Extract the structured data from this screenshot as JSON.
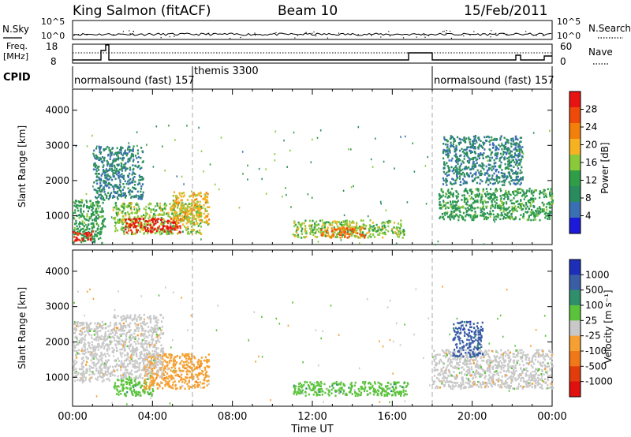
{
  "header": {
    "station": "King Salmon (fitACF)",
    "beam": "Beam 10",
    "date": "15/Feb/2011"
  },
  "noise_panel": {
    "left_label": "N.Sky",
    "right_label": "N.Search",
    "tick_top": "10^5",
    "tick_bottom": "10^0"
  },
  "freq_panel": {
    "left_label_1": "Freq.",
    "left_label_2": "[MHz]",
    "right_label": "Nave",
    "left_ticks": [
      "18",
      "8"
    ],
    "right_ticks": [
      "60",
      "0"
    ]
  },
  "cpid_panel": {
    "label": "CPID",
    "segments": [
      {
        "name": "normalsound (fast)",
        "id": "157",
        "start_h": 0,
        "end_h": 6
      },
      {
        "name": "themis",
        "id": "3300",
        "start_h": 6,
        "end_h": 18
      },
      {
        "name": "normalsound (fast)",
        "id": "157",
        "start_h": 18,
        "end_h": 24
      }
    ]
  },
  "power_colorbar": {
    "label": "Power [dB]",
    "ticks": [
      "28",
      "24",
      "20",
      "16",
      "12",
      "8",
      "4"
    ],
    "colors": [
      "#e81414",
      "#ee4a0a",
      "#f4800c",
      "#f5b322",
      "#8ac93a",
      "#2f9e47",
      "#2a8c5e",
      "#3a6fb4",
      "#1a1ad8"
    ]
  },
  "velocity_colorbar": {
    "label": "Velocity [m s⁻¹]",
    "ticks": [
      "1000",
      "500",
      "100",
      "25",
      "-25",
      "-100",
      "-500",
      "-1000"
    ],
    "colors": [
      "#1d2fb8",
      "#3a5ea6",
      "#2f8f6c",
      "#5ac33a",
      "#c8c8c8",
      "#f5a030",
      "#f07818",
      "#e03c0c",
      "#e01010"
    ]
  },
  "chart_data": {
    "type": "heatmap",
    "x_axis": {
      "label": "Time UT",
      "ticks": [
        "00:00",
        "04:00",
        "08:00",
        "12:00",
        "16:00",
        "20:00",
        "00:00"
      ],
      "range_h": [
        0,
        24
      ]
    },
    "y_axis": {
      "label": "Slant Range [km]",
      "ticks": [
        "1000",
        "2000",
        "3000",
        "4000"
      ],
      "range_km": [
        180,
        4600
      ]
    },
    "mode_boundaries_h": [
      6,
      18
    ],
    "power_regions": [
      {
        "t0": 0.0,
        "t1": 1.6,
        "r0": 250,
        "r1": 1500,
        "level_db": 10
      },
      {
        "t0": 0.0,
        "t1": 1.0,
        "r0": 300,
        "r1": 600,
        "level_db": 26
      },
      {
        "t0": 2.0,
        "t1": 6.4,
        "r0": 500,
        "r1": 1400,
        "level_db": 14
      },
      {
        "t0": 2.6,
        "t1": 5.4,
        "r0": 550,
        "r1": 950,
        "level_db": 28
      },
      {
        "t0": 5.0,
        "t1": 6.8,
        "r0": 800,
        "r1": 1700,
        "level_db": 18
      },
      {
        "t0": 1.0,
        "t1": 3.5,
        "r0": 1500,
        "r1": 3000,
        "level_db": 6
      },
      {
        "t0": 11.0,
        "t1": 16.6,
        "r0": 400,
        "r1": 900,
        "level_db": 14
      },
      {
        "t0": 12.4,
        "t1": 14.6,
        "r0": 400,
        "r1": 700,
        "level_db": 22
      },
      {
        "t0": 18.3,
        "t1": 24.0,
        "r0": 900,
        "r1": 1800,
        "level_db": 10
      },
      {
        "t0": 18.5,
        "t1": 22.5,
        "r0": 1900,
        "r1": 3300,
        "level_db": 6
      }
    ],
    "velocity_regions": [
      {
        "t0": 0.0,
        "t1": 2.0,
        "r0": 900,
        "r1": 2600,
        "level_ms": 0
      },
      {
        "t0": 2.0,
        "t1": 4.0,
        "r0": 500,
        "r1": 1000,
        "level_ms": 80
      },
      {
        "t0": 3.5,
        "t1": 6.8,
        "r0": 700,
        "r1": 1700,
        "level_ms": -200
      },
      {
        "t0": 2.0,
        "t1": 4.5,
        "r0": 1000,
        "r1": 2800,
        "level_ms": 0
      },
      {
        "t0": 11.0,
        "t1": 16.8,
        "r0": 500,
        "r1": 900,
        "level_ms": 80
      },
      {
        "t0": 18.0,
        "t1": 24.0,
        "r0": 700,
        "r1": 1800,
        "level_ms": 0
      },
      {
        "t0": 19.0,
        "t1": 20.5,
        "r0": 1600,
        "r1": 2600,
        "level_ms": 300
      }
    ]
  }
}
